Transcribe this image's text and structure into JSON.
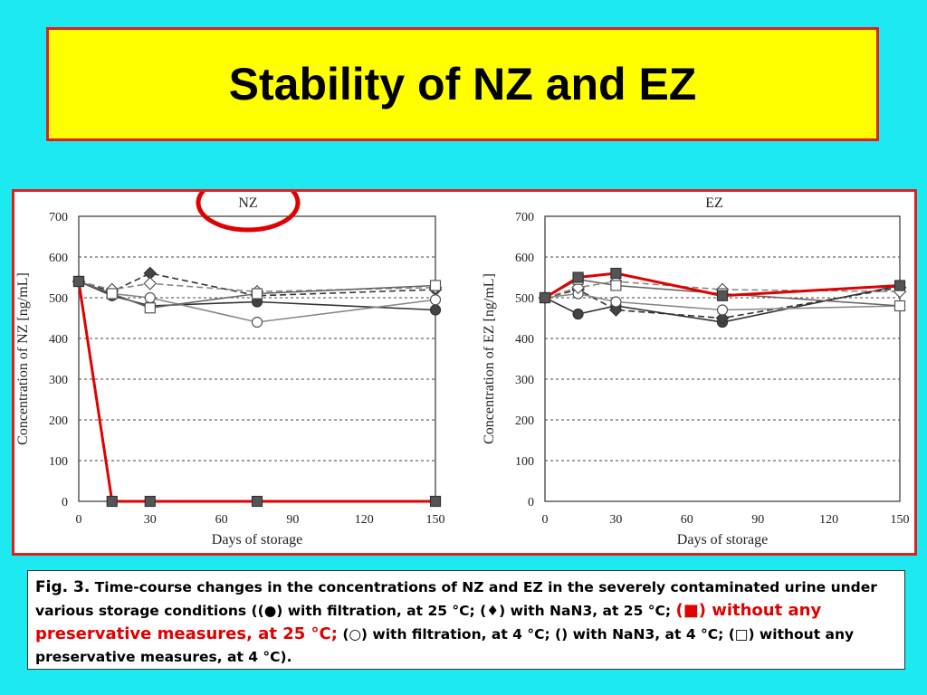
{
  "slide": {
    "title": "Stability of NZ and EZ"
  },
  "caption": {
    "fig": "Fig. 3.",
    "part1": " Time-course changes in the concentrations of NZ and EZ in the severely contaminated urine under various storage conditions ((●) with filtration, at 25 °C; (♦) with NaN3, at 25 °C; ",
    "highlight": "(■) without any preservative measures, at 25 °C;",
    "part2": " (○) with filtration, at 4 °C; () with NaN3, at 4 °C; (□) without any preservative measures, at 4 °C)."
  },
  "colors": {
    "background": "#1de9f0",
    "title_bg": "#ffff00",
    "frame": "#e02020",
    "highlight": "#e00000"
  },
  "chart_data": [
    {
      "type": "line",
      "title": "NZ",
      "xlabel": "Days of storage",
      "ylabel": "Concentration of NZ [ng/mL]",
      "xlim": [
        0,
        150
      ],
      "ylim": [
        0,
        700
      ],
      "xticks": [
        0,
        30,
        60,
        90,
        120,
        150
      ],
      "yticks": [
        0,
        100,
        200,
        300,
        400,
        500,
        600,
        700
      ],
      "grid": "horizontal dashed",
      "annotation": "title circled in red",
      "series": [
        {
          "marker": "filled-circle",
          "style": "solid",
          "color": "#333333",
          "x": [
            0,
            14,
            30,
            75,
            150
          ],
          "y": [
            540,
            505,
            480,
            490,
            470
          ]
        },
        {
          "marker": "filled-diamond",
          "style": "dashed",
          "color": "#333333",
          "x": [
            0,
            14,
            30,
            75,
            150
          ],
          "y": [
            540,
            515,
            560,
            505,
            520
          ]
        },
        {
          "marker": "filled-square",
          "style": "solid",
          "color": "#e00000",
          "highlight": true,
          "x": [
            0,
            14,
            30,
            75,
            150
          ],
          "y": [
            540,
            0,
            0,
            0,
            0
          ]
        },
        {
          "marker": "open-circle",
          "style": "solid",
          "color": "#888888",
          "x": [
            0,
            14,
            30,
            75,
            150
          ],
          "y": [
            540,
            510,
            500,
            440,
            495
          ]
        },
        {
          "marker": "open-diamond",
          "style": "dashed",
          "color": "#888888",
          "x": [
            0,
            14,
            30,
            75,
            150
          ],
          "y": [
            540,
            520,
            535,
            515,
            525
          ]
        },
        {
          "marker": "open-square",
          "style": "solid",
          "color": "#666666",
          "x": [
            0,
            14,
            30,
            75,
            150
          ],
          "y": [
            540,
            510,
            475,
            510,
            530
          ]
        }
      ]
    },
    {
      "type": "line",
      "title": "EZ",
      "xlabel": "Days of storage",
      "ylabel": "Concentration of EZ [ng/mL]",
      "xlim": [
        0,
        150
      ],
      "ylim": [
        0,
        700
      ],
      "xticks": [
        0,
        30,
        60,
        90,
        120,
        150
      ],
      "yticks": [
        0,
        100,
        200,
        300,
        400,
        500,
        600,
        700
      ],
      "grid": "horizontal dashed",
      "series": [
        {
          "marker": "filled-circle",
          "style": "solid",
          "color": "#333333",
          "x": [
            0,
            14,
            30,
            75,
            150
          ],
          "y": [
            500,
            460,
            480,
            440,
            530
          ]
        },
        {
          "marker": "filled-diamond",
          "style": "dashed",
          "color": "#333333",
          "x": [
            0,
            14,
            30,
            75,
            150
          ],
          "y": [
            500,
            520,
            470,
            450,
            525
          ]
        },
        {
          "marker": "filled-square",
          "style": "solid",
          "color": "#e00000",
          "highlight": true,
          "x": [
            0,
            14,
            30,
            75,
            150
          ],
          "y": [
            500,
            550,
            560,
            505,
            530
          ]
        },
        {
          "marker": "open-circle",
          "style": "solid",
          "color": "#888888",
          "x": [
            0,
            14,
            30,
            75,
            150
          ],
          "y": [
            500,
            510,
            490,
            470,
            480
          ]
        },
        {
          "marker": "open-diamond",
          "style": "dashed",
          "color": "#888888",
          "x": [
            0,
            14,
            30,
            75,
            150
          ],
          "y": [
            500,
            525,
            540,
            520,
            515
          ]
        },
        {
          "marker": "open-square",
          "style": "solid",
          "color": "#666666",
          "x": [
            0,
            14,
            30,
            75,
            150
          ],
          "y": [
            500,
            545,
            530,
            510,
            480
          ]
        }
      ]
    }
  ]
}
